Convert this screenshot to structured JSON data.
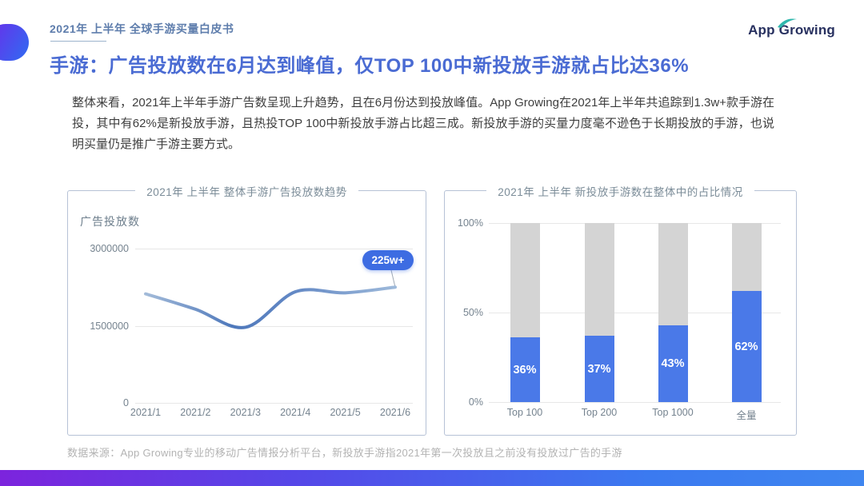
{
  "header": {
    "eyebrow": "2021年 上半年 全球手游买量白皮书",
    "logo_app": "App",
    "logo_growing": "Growing"
  },
  "page_title": "手游：广告投放数在6月达到峰值，仅TOP 100中新投放手游就占比达36%",
  "body_text": "整体来看，2021年上半年手游广告数呈现上升趋势，且在6月份达到投放峰值。App Growing在2021年上半年共追踪到1.3w+款手游在投，其中有62%是新投放手游，且热投TOP 100中新投放手游占比超三成。新投放手游的买量力度毫不逊色于长期投放的手游，也说明买量仍是推广手游主要方式。",
  "footer_note": "数据来源：App Growing专业的移动广告情报分析平台，新投放手游指2021年第一次投放且之前没有投放过广告的手游",
  "colors": {
    "accent_blue": "#4a6bd3",
    "line_dark": "#4e78bb",
    "line_light": "#a3bbd9",
    "bar_blue": "#4a79e8",
    "bar_gray": "#d4d4d4",
    "badge_blue": "#3d6ce2",
    "bottom_gradient_left": "#7c24dd",
    "bottom_gradient_right": "#3b7af0"
  },
  "chart_data": [
    {
      "type": "line",
      "title": "2021年 上半年 整体手游广告投放数趋势",
      "ylabel": "广告投放数",
      "x": [
        "2021/1",
        "2021/2",
        "2021/3",
        "2021/4",
        "2021/5",
        "2021/6"
      ],
      "values": [
        2120000,
        1820000,
        1470000,
        2160000,
        2140000,
        2250000
      ],
      "yticks": [
        0,
        1500000,
        3000000
      ],
      "ytick_labels": [
        "0",
        "1500000",
        "3000000"
      ],
      "ylim": [
        0,
        3000000
      ],
      "annotation": "225w+",
      "grid": "horizontal",
      "legend": "none"
    },
    {
      "type": "bar",
      "subtype": "stacked-percent",
      "title": "2021年 上半年 新投放手游数在整体中的占比情况",
      "categories": [
        "Top 100",
        "Top 200",
        "Top 1000",
        "全量"
      ],
      "values": [
        36,
        37,
        43,
        62
      ],
      "value_labels": [
        "36%",
        "37%",
        "43%",
        "62%"
      ],
      "remainder_to": 100,
      "yticks": [
        0,
        50,
        100
      ],
      "ytick_labels": [
        "0%",
        "50%",
        "100%"
      ],
      "ylim": [
        0,
        100
      ],
      "grid": "horizontal",
      "legend": "none"
    }
  ]
}
